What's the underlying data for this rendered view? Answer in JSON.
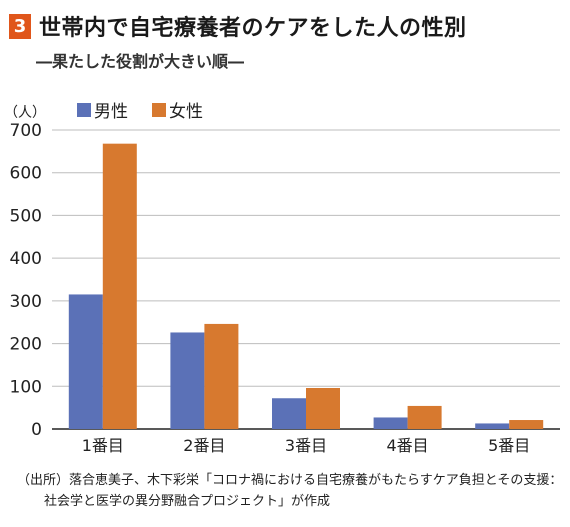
{
  "header": {
    "badge": "3",
    "title": "世帯内で自宅療養者のケアをした人の性別",
    "subtitle": "―果たした役割が大きい順―"
  },
  "chart_data": {
    "type": "bar",
    "ylabel": "（人）",
    "ylim": [
      0,
      700
    ],
    "yticks": [
      0,
      100,
      200,
      300,
      400,
      500,
      600,
      700
    ],
    "categories": [
      "1番目",
      "2番目",
      "3番目",
      "4番目",
      "5番目"
    ],
    "series": [
      {
        "name": "男性",
        "color": "#5b71b7",
        "values": [
          315,
          226,
          72,
          27,
          13
        ]
      },
      {
        "name": "女性",
        "color": "#d7792f",
        "values": [
          668,
          246,
          96,
          54,
          21
        ]
      }
    ],
    "grid": true,
    "legend": "top-left"
  },
  "source": {
    "line1": "（出所）落合恵美子、木下彩栄「コロナ禍における自宅療養がもたらすケア負担とその支援：",
    "line2": "社会学と医学の異分野融合プロジェクト」が作成"
  }
}
